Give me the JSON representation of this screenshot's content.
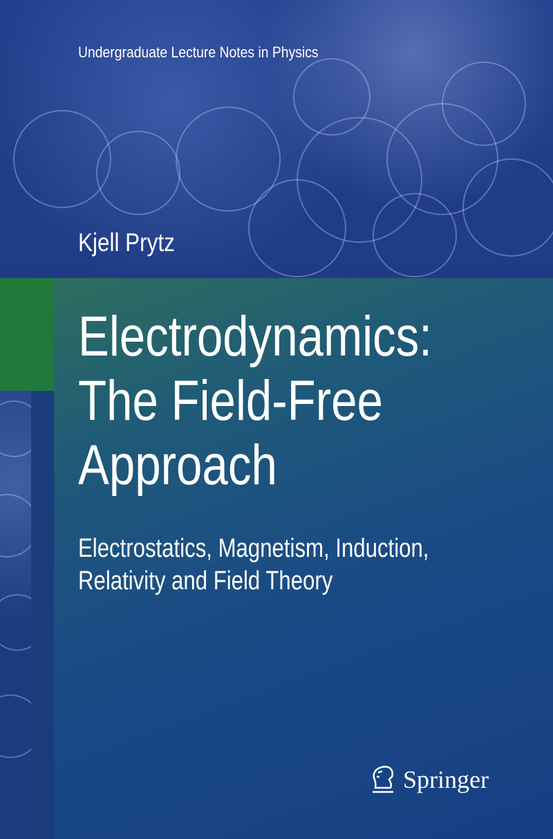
{
  "cover": {
    "series": "Undergraduate Lecture Notes in Physics",
    "author": "Kjell Prytz",
    "title_lines": [
      "Electrodynamics:",
      "The Field-Free",
      "Approach"
    ],
    "subtitle_lines": [
      "Electrostatics, Magnetism, Induction,",
      "Relativity and Field Theory"
    ],
    "publisher": "Springer",
    "publisher_logo_icon": "springer-horse-icon",
    "colors": {
      "panel_green": "#1f7a3a",
      "panel_blue": "#163f84",
      "text": "#ffffff"
    }
  }
}
